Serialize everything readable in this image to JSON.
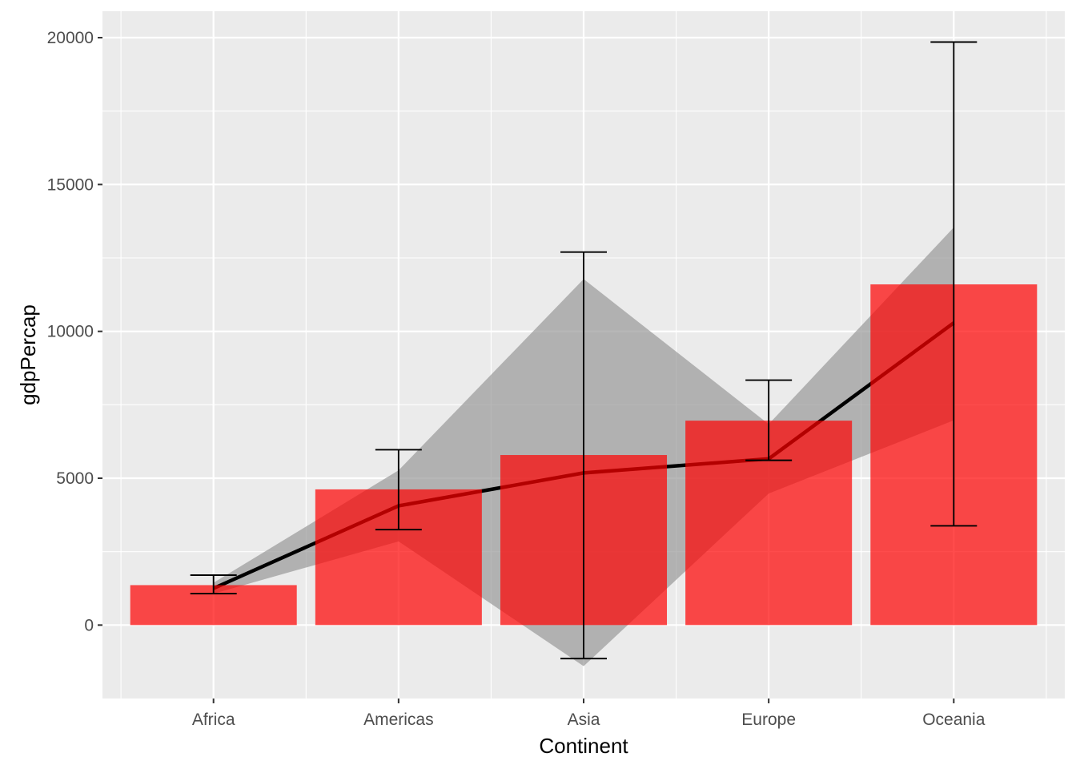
{
  "chart_data": {
    "type": "bar",
    "xlabel": "Continent",
    "ylabel": "gdpPercap",
    "categories": [
      "Africa",
      "Americas",
      "Asia",
      "Europe",
      "Oceania"
    ],
    "ylim": [
      -2500,
      20900
    ],
    "yticks": [
      0,
      5000,
      10000,
      15000,
      20000
    ],
    "grid": true,
    "legend": "none",
    "series": [
      {
        "type": "bar",
        "values": [
          1360,
          4620,
          5790,
          6960,
          11600
        ],
        "color": "#ff0000",
        "opacity": 0.7
      },
      {
        "type": "line",
        "values": [
          1250,
          4060,
          5180,
          5660,
          10290
        ],
        "color": "#000000"
      },
      {
        "type": "errorbar",
        "lower": [
          1070,
          3250,
          -1140,
          5610,
          3380
        ],
        "upper": [
          1700,
          5970,
          12700,
          8340,
          19850
        ],
        "color": "#000000"
      },
      {
        "type": "ribbon",
        "lower": [
          1070,
          2850,
          -1400,
          4480,
          6970
        ],
        "upper": [
          1440,
          5270,
          11780,
          6840,
          13540
        ],
        "color": "#999999",
        "opacity": 0.7
      }
    ]
  }
}
